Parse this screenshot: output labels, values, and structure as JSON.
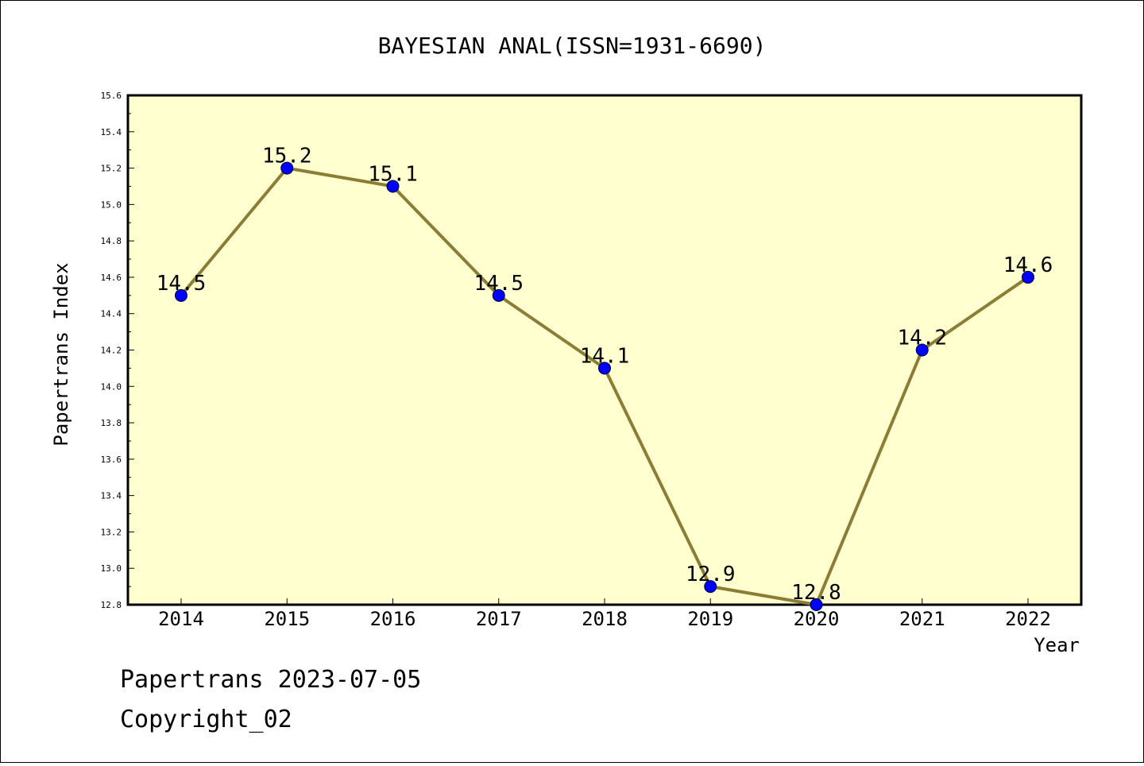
{
  "chart_data": {
    "type": "line",
    "title": "BAYESIAN ANAL(ISSN=1931-6690)",
    "xlabel": "Year",
    "ylabel": "Papertrans Index",
    "categories": [
      "2014",
      "2015",
      "2016",
      "2017",
      "2018",
      "2019",
      "2020",
      "2021",
      "2022"
    ],
    "series": [
      {
        "values": [
          14.5,
          15.2,
          15.1,
          14.5,
          14.1,
          12.9,
          12.8,
          14.2,
          14.6
        ],
        "labels": [
          "14.5",
          "15.2",
          "15.1",
          "14.5",
          "14.1",
          "12.9",
          "12.8",
          "14.2",
          "14.6"
        ]
      }
    ],
    "ylim": [
      12.8,
      15.6
    ],
    "yticks": [
      "12.8",
      "13.0",
      "13.2",
      "13.4",
      "13.6",
      "13.8",
      "14.0",
      "14.2",
      "14.4",
      "14.6",
      "14.8",
      "15.0",
      "15.2",
      "15.4",
      "15.6"
    ],
    "grid": false,
    "legend": "none",
    "colors": {
      "plot_background": "#ffffd0",
      "line": "#8b7d35",
      "marker": "#0000ff"
    }
  },
  "footer": {
    "line1": "Papertrans 2023-07-05",
    "line2": "Copyright_02"
  }
}
